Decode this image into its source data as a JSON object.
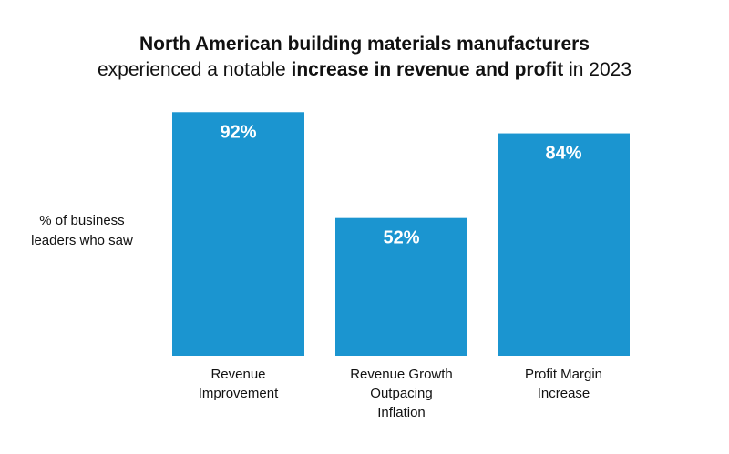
{
  "colors": {
    "bar": "#1b95d0",
    "bar_label": "#ffffff",
    "text": "#111111"
  },
  "chart_data": {
    "type": "bar",
    "title": "North American building materials manufacturers",
    "subtitle": {
      "part1": "experienced a notable ",
      "emphasis": "increase in revenue and profit",
      "part2": " in 2023"
    },
    "ylabel": "% of business leaders who saw",
    "categories": [
      [
        "Revenue",
        "Improvement"
      ],
      [
        "Revenue Growth",
        "Outpacing",
        "Inflation"
      ],
      [
        "Profit Margin",
        "Increase"
      ]
    ],
    "values": [
      92,
      52,
      84
    ],
    "value_labels": [
      "92%",
      "52%",
      "84%"
    ],
    "ylim": [
      0,
      100
    ],
    "grid": false,
    "legend": "none"
  }
}
